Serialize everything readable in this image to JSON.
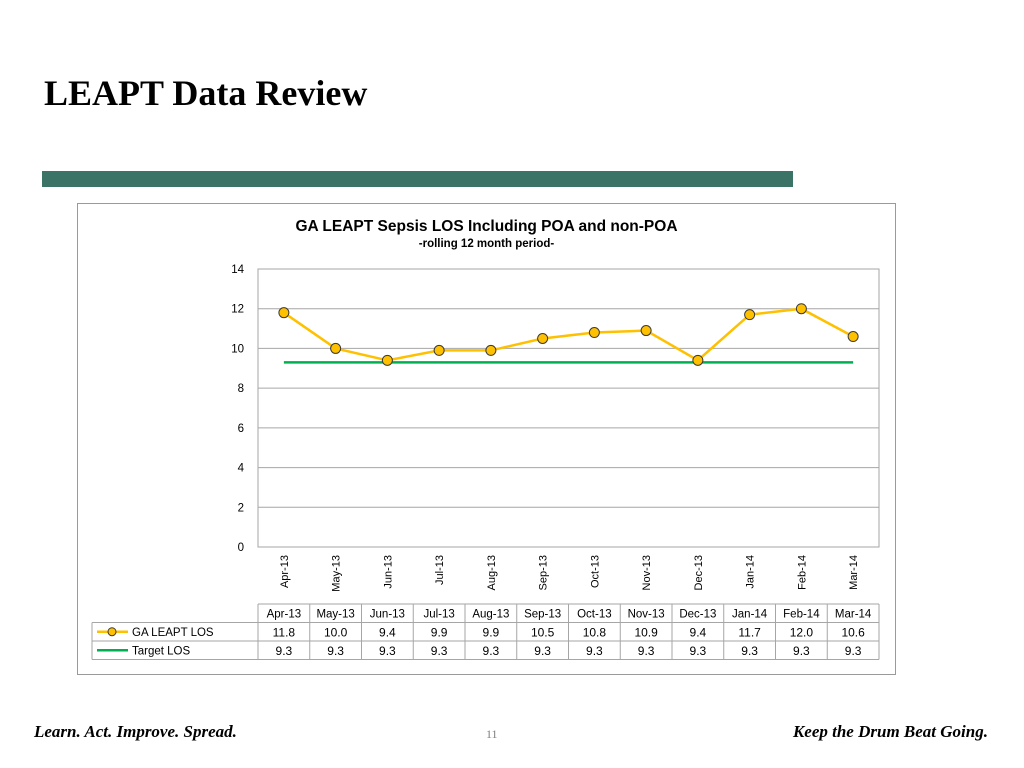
{
  "slide": {
    "title": "LEAPT Data Review",
    "footer_left": "Learn. Act. Improve. Spread.",
    "footer_right": "Keep the Drum Beat Going.",
    "page_number": "11",
    "accent_color": "#3b7466"
  },
  "chart_data": {
    "type": "line",
    "title": "GA LEAPT Sepsis LOS Including POA and non-POA",
    "subtitle": "-rolling 12 month period-",
    "categories": [
      "Apr-13",
      "May-13",
      "Jun-13",
      "Jul-13",
      "Aug-13",
      "Sep-13",
      "Oct-13",
      "Nov-13",
      "Dec-13",
      "Jan-14",
      "Feb-14",
      "Mar-14"
    ],
    "series": [
      {
        "name": "GA LEAPT LOS",
        "values": [
          11.8,
          10.0,
          9.4,
          9.9,
          9.9,
          10.5,
          10.8,
          10.9,
          9.4,
          11.7,
          12.0,
          10.6
        ],
        "color": "#ffc000",
        "marker": "circle"
      },
      {
        "name": "Target LOS",
        "values": [
          9.3,
          9.3,
          9.3,
          9.3,
          9.3,
          9.3,
          9.3,
          9.3,
          9.3,
          9.3,
          9.3,
          9.3
        ],
        "color": "#00b050"
      }
    ],
    "ylim": [
      0,
      14
    ],
    "yticks": [
      0,
      2,
      4,
      6,
      8,
      10,
      12,
      14
    ],
    "grid": true,
    "legend": "data-table"
  }
}
